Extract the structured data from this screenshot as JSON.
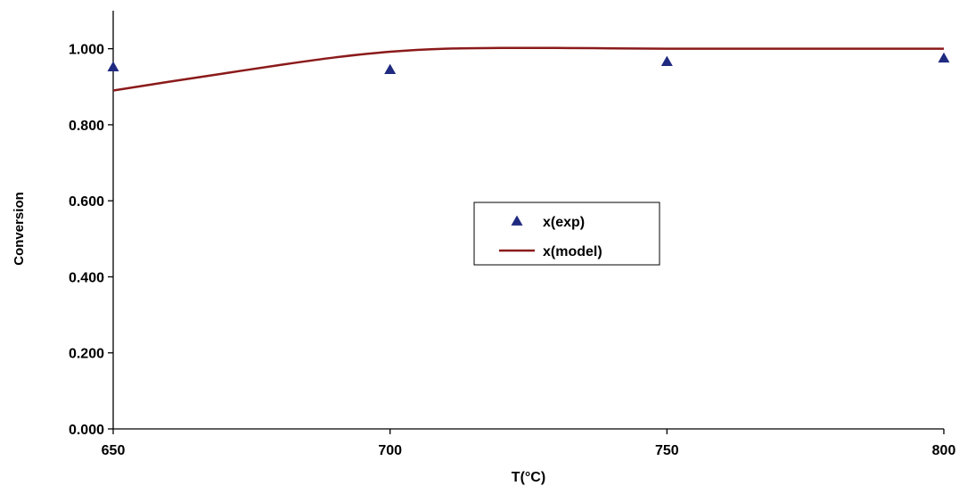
{
  "chart_data": {
    "type": "scatter",
    "title": "",
    "xlabel": "T(°C)",
    "ylabel": "Conversion",
    "xlim": [
      650,
      800
    ],
    "ylim": [
      0,
      1.1
    ],
    "x_ticks": [
      650,
      700,
      750,
      800
    ],
    "x_tick_labels": [
      "650",
      "700",
      "750",
      "800"
    ],
    "y_ticks": [
      0,
      0.2,
      0.4,
      0.6,
      0.8,
      1.0
    ],
    "y_tick_labels": [
      "0.000",
      "0.200",
      "0.400",
      "0.600",
      "0.800",
      "1.000"
    ],
    "grid": false,
    "legend_position": "center",
    "series": [
      {
        "name": "x(exp)",
        "kind": "markers",
        "marker": "triangle",
        "color": "#1f2a80",
        "x": [
          650,
          700,
          750,
          800
        ],
        "y": [
          0.952,
          0.945,
          0.966,
          0.975
        ]
      },
      {
        "name": "x(model)",
        "kind": "line",
        "color": "#8b1a1a",
        "x": [
          650,
          660,
          670,
          680,
          690,
          700,
          710,
          720,
          730,
          740,
          750,
          760,
          770,
          780,
          790,
          800
        ],
        "y": [
          0.89,
          0.913,
          0.935,
          0.957,
          0.977,
          0.992,
          1.0,
          1.002,
          1.002,
          1.001,
          1.0,
          1.0,
          1.0,
          1.0,
          1.0,
          1.0
        ]
      }
    ]
  }
}
